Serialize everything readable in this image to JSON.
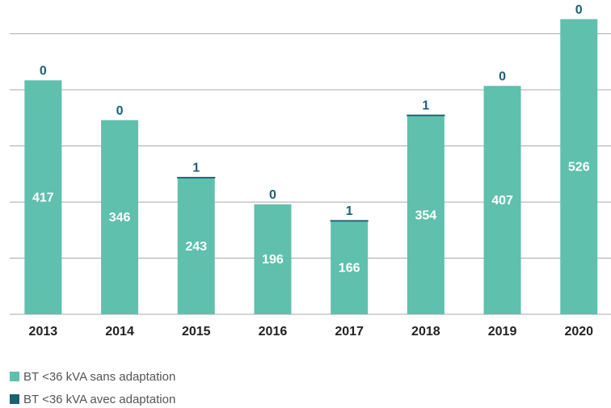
{
  "chart_data": {
    "type": "stacked-bar",
    "categories": [
      "2013",
      "2014",
      "2015",
      "2016",
      "2017",
      "2018",
      "2019",
      "2020"
    ],
    "series": [
      {
        "name": "BT <36 kVA sans adaptation",
        "color": "#5fc0ad",
        "values": [
          417,
          346,
          243,
          196,
          166,
          354,
          407,
          526
        ]
      },
      {
        "name": "BT <36 kVA avec adaptation",
        "color": "#1d6173",
        "values": [
          0,
          0,
          1,
          0,
          1,
          1,
          0,
          0
        ]
      }
    ],
    "ylim": [
      0,
      550
    ],
    "yticks": [
      0,
      100,
      200,
      300,
      400,
      500
    ],
    "grid": true
  }
}
